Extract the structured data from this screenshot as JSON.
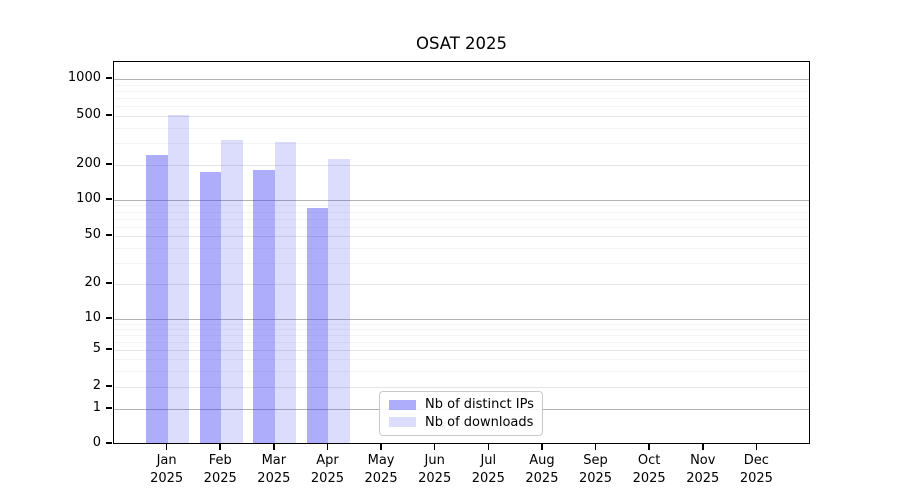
{
  "title": "OSAT 2025",
  "chart_data": {
    "type": "bar",
    "title": "OSAT 2025",
    "xlabel": "",
    "ylabel": "",
    "yscale": "symlog",
    "ylim": [
      0,
      1400
    ],
    "grid": true,
    "legend_position": "lower center",
    "y_ticks": [
      0,
      1,
      2,
      5,
      10,
      20,
      50,
      100,
      200,
      500,
      1000
    ],
    "categories": [
      "Jan",
      "Feb",
      "Mar",
      "Apr",
      "May",
      "Jun",
      "Jul",
      "Aug",
      "Sep",
      "Oct",
      "Nov",
      "Dec"
    ],
    "year_label": "2025",
    "series": [
      {
        "name": "Nb of distinct IPs",
        "fill": "rgba(60,60,245,0.42)",
        "color_hex": "#adadf9",
        "values": [
          240,
          175,
          180,
          85,
          null,
          null,
          null,
          null,
          null,
          null,
          null,
          null
        ]
      },
      {
        "name": "Nb of downloads",
        "fill": "rgba(60,60,245,0.18)",
        "color_hex": "#dcdcfb",
        "values": [
          505,
          320,
          305,
          225,
          null,
          null,
          null,
          null,
          null,
          null,
          null,
          null
        ]
      }
    ],
    "grid_colors": {
      "major": "#b2b2b2",
      "labeled_minor": "#e4e4e4",
      "minor": "#f3f3f3"
    }
  }
}
